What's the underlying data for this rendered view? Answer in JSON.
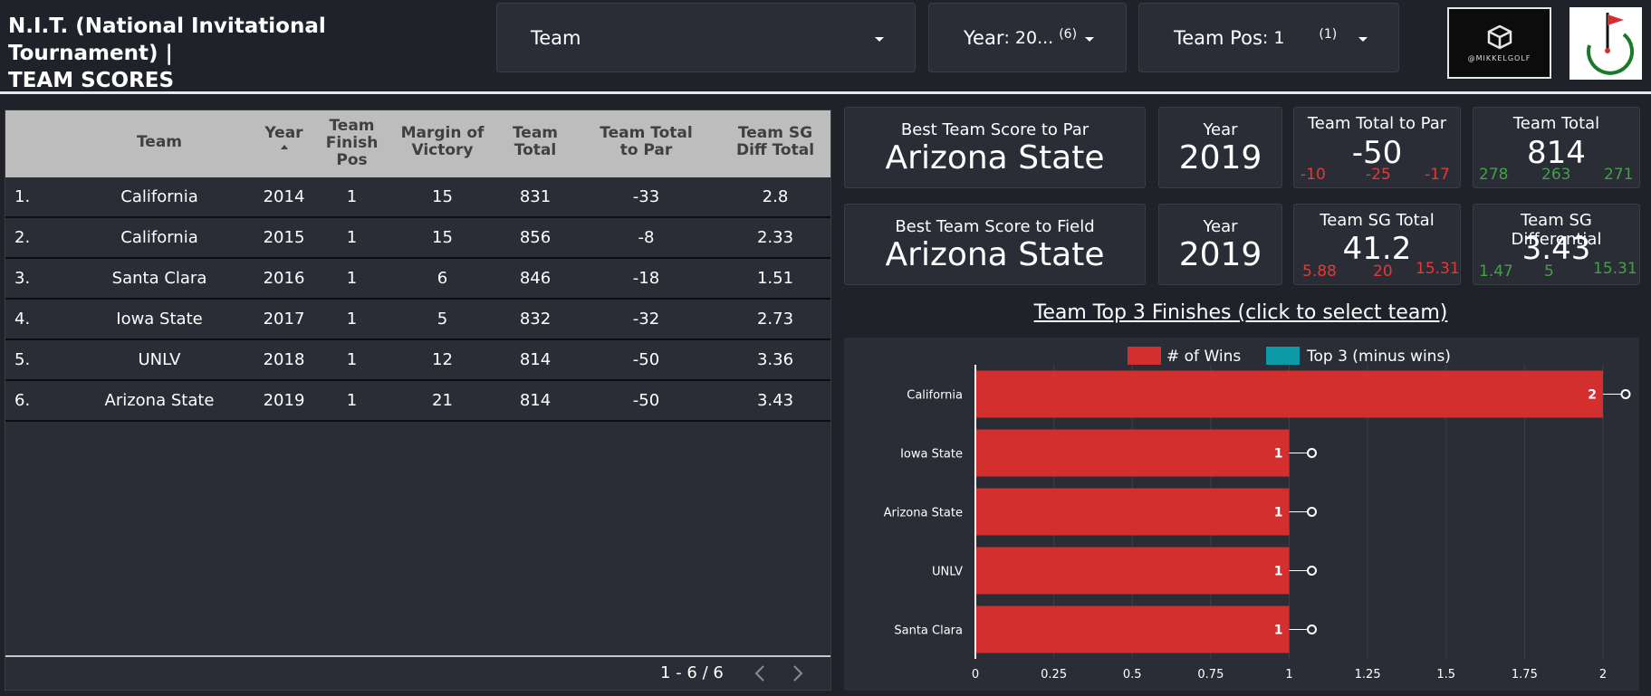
{
  "header": {
    "title_line1": "N.I.T. (National Invitational Tournament) |",
    "title_line2": "TEAM SCORES",
    "filters": {
      "team_label": "Team",
      "year_label": "Year",
      "year_value": ": 20...",
      "year_count": "(6)",
      "pos_label": "Team Pos",
      "pos_value": ": 1",
      "pos_count": "(1)"
    },
    "logo_text": "@MIKKELGOLF"
  },
  "table": {
    "columns": [
      "Team",
      "Year",
      "Team Finish Pos",
      "Margin of Victory",
      "Team Total",
      "Team Total to Par",
      "Team SG Diff Total"
    ],
    "rows": [
      [
        "1.",
        "California",
        "2014",
        "1",
        "15",
        "831",
        "-33",
        "2.8"
      ],
      [
        "2.",
        "California",
        "2015",
        "1",
        "15",
        "856",
        "-8",
        "2.33"
      ],
      [
        "3.",
        "Santa Clara",
        "2016",
        "1",
        "6",
        "846",
        "-18",
        "1.51"
      ],
      [
        "4.",
        "Iowa State",
        "2017",
        "1",
        "5",
        "832",
        "-32",
        "2.73"
      ],
      [
        "5.",
        "UNLV",
        "2018",
        "1",
        "12",
        "814",
        "-50",
        "3.36"
      ],
      [
        "6.",
        "Arizona State",
        "2019",
        "1",
        "21",
        "814",
        "-50",
        "3.43"
      ]
    ],
    "pager": "1 - 6 / 6"
  },
  "kpis": {
    "best_par": {
      "label": "Best Team Score to Par",
      "value": "Arizona State"
    },
    "best_par_year": {
      "label": "Year",
      "value": "2019"
    },
    "total_to_par": {
      "label": "Team Total to Par",
      "value": "-50",
      "spark": [
        "-10",
        "-25",
        "-17"
      ]
    },
    "team_total": {
      "label": "Team Total",
      "value": "814",
      "spark": [
        "278",
        "263",
        "271"
      ]
    },
    "best_field": {
      "label": "Best Team Score to Field",
      "value": "Arizona State"
    },
    "best_field_year": {
      "label": "Year",
      "value": "2019"
    },
    "sg_total": {
      "label": "Team SG Total",
      "value": "41.2",
      "spark": [
        "5.88",
        "20",
        "15.31"
      ]
    },
    "sg_diff": {
      "label": "Team SG Differential",
      "value": "3.43",
      "spark": [
        "1.47",
        "5",
        "15.31"
      ]
    }
  },
  "colors": {
    "wins": "#d32f2f",
    "top3": "#0b9aa6",
    "negative": "#e53935",
    "positive": "#43a047"
  },
  "chart_data": {
    "type": "bar",
    "orientation": "horizontal",
    "stacked": true,
    "title": "Team Top 3 Finishes (click to select team)",
    "categories": [
      "California",
      "Iowa State",
      "Arizona State",
      "UNLV",
      "Santa Clara"
    ],
    "series": [
      {
        "name": "# of Wins",
        "values": [
          2,
          1,
          1,
          1,
          1
        ]
      },
      {
        "name": "Top 3 (minus wins)",
        "values": [
          0,
          0,
          0,
          0,
          0
        ]
      }
    ],
    "xlim": [
      0,
      2
    ],
    "xticks": [
      "0",
      "0.25",
      "0.5",
      "0.75",
      "1",
      "1.25",
      "1.5",
      "1.75",
      "2"
    ],
    "legend": "top",
    "grid": true
  }
}
